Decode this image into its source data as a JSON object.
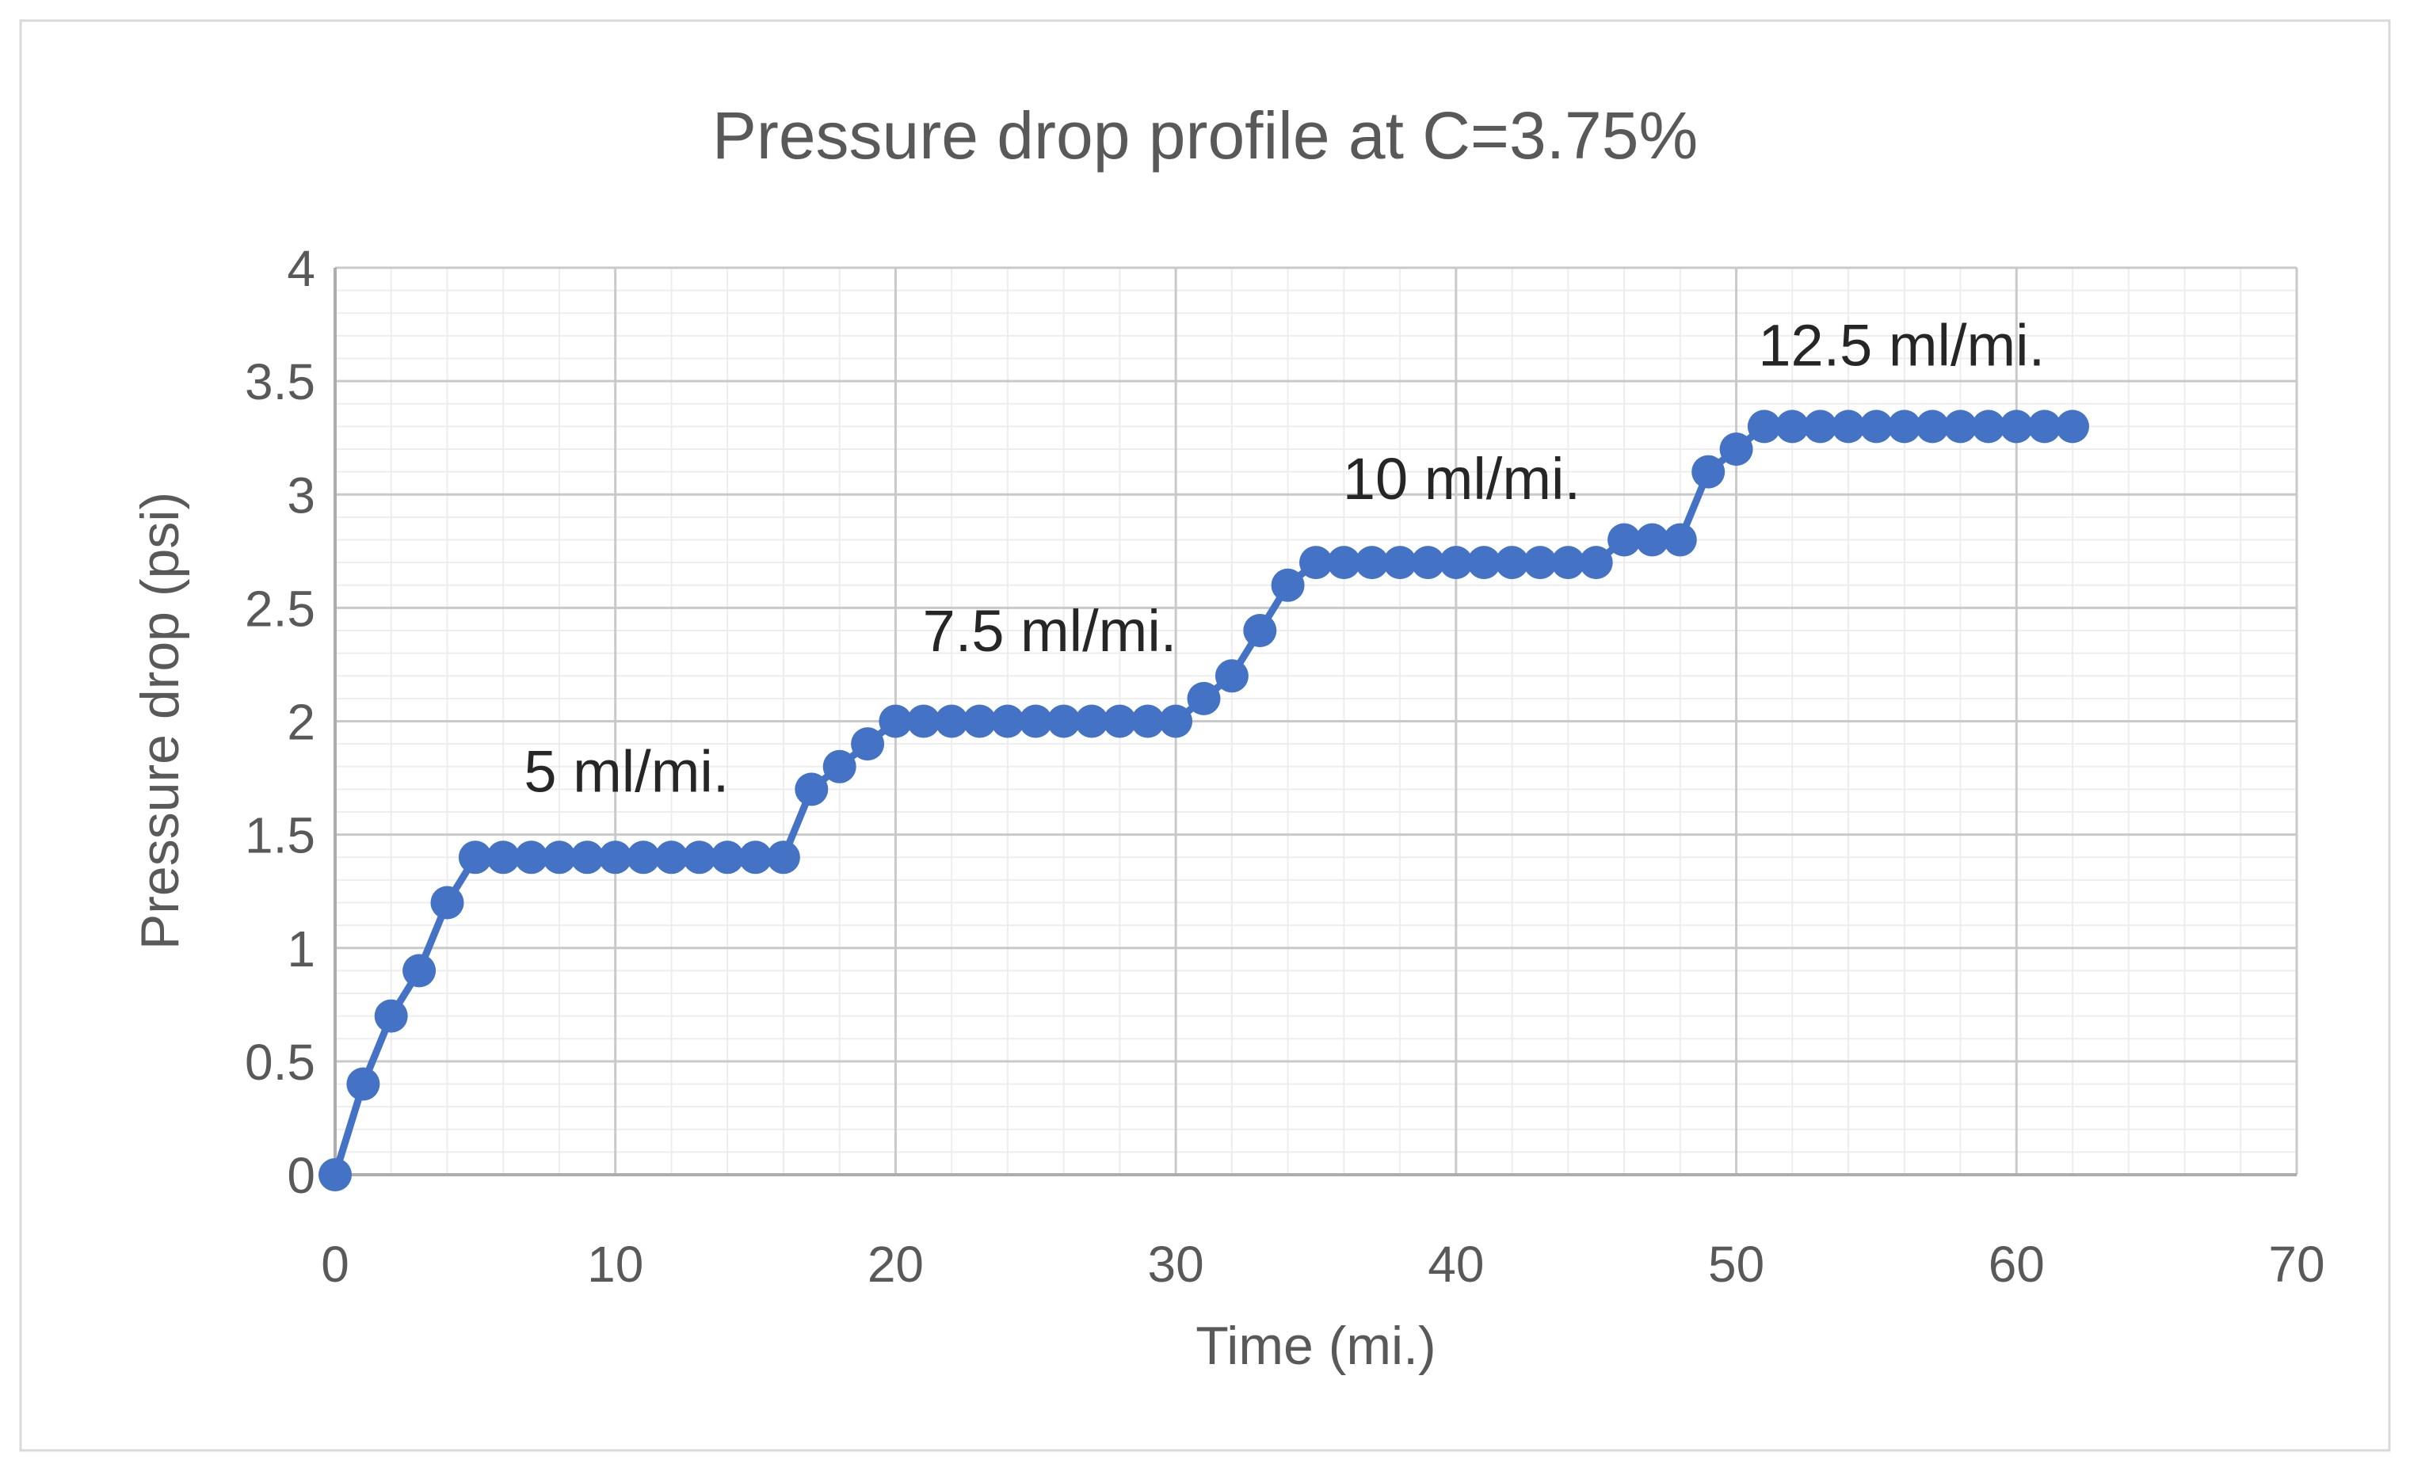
{
  "window": {
    "background": "#ffffff",
    "border_color": "#d9d9d9"
  },
  "colors": {
    "series": "#4472C4",
    "grid_minor": "#ededed",
    "grid_major": "#c9c9c9",
    "axis_line": "#adadad",
    "tick_text": "#595959",
    "title_text": "#595959",
    "annotation_text": "#262626"
  },
  "chart_data": {
    "type": "line",
    "title": "Pressure drop profile at C=3.75%",
    "xlabel": "Time (mi.)",
    "ylabel": "Pressure drop (psi)",
    "xlim": [
      0,
      70
    ],
    "ylim": [
      0,
      4
    ],
    "x_ticks": [
      0,
      10,
      20,
      30,
      40,
      50,
      60,
      70
    ],
    "y_ticks": [
      0,
      0.5,
      1,
      1.5,
      2,
      2.5,
      3,
      3.5,
      4
    ],
    "x_minor_step": 2,
    "y_minor_step": 0.1,
    "grid": "major and minor, both axes",
    "legend": false,
    "series": [
      {
        "name": "Pressure drop",
        "color": "#4472C4",
        "marker": "circle",
        "x": [
          0,
          1,
          2,
          3,
          4,
          5,
          6,
          7,
          8,
          9,
          10,
          11,
          12,
          13,
          14,
          15,
          16,
          17,
          18,
          19,
          20,
          21,
          22,
          23,
          24,
          25,
          26,
          27,
          28,
          29,
          30,
          31,
          32,
          33,
          34,
          35,
          36,
          37,
          38,
          39,
          40,
          41,
          42,
          43,
          44,
          45,
          46,
          47,
          48,
          49,
          50,
          51,
          52,
          53,
          54,
          55,
          56,
          57,
          58,
          59,
          60,
          61,
          62
        ],
        "values": [
          0,
          0.4,
          0.7,
          0.9,
          1.2,
          1.4,
          1.4,
          1.4,
          1.4,
          1.4,
          1.4,
          1.4,
          1.4,
          1.4,
          1.4,
          1.4,
          1.4,
          1.7,
          1.8,
          1.9,
          2,
          2,
          2,
          2,
          2,
          2,
          2,
          2,
          2,
          2,
          2,
          2.1,
          2.2,
          2.4,
          2.6,
          2.7,
          2.7,
          2.7,
          2.7,
          2.7,
          2.7,
          2.7,
          2.7,
          2.7,
          2.7,
          2.7,
          2.8,
          2.8,
          2.8,
          3.1,
          3.2,
          3.3,
          3.3,
          3.3,
          3.3,
          3.3,
          3.3,
          3.3,
          3.3,
          3.3,
          3.3,
          3.3,
          3.3
        ]
      }
    ],
    "annotations": [
      {
        "label": "5 ml/mi.",
        "x": 10.4,
        "y": 1.78
      },
      {
        "label": "7.5 ml/mi.",
        "x": 25.5,
        "y": 2.4
      },
      {
        "label": "10 ml/mi.",
        "x": 40.2,
        "y": 3.07
      },
      {
        "label": "12.5 ml/mi.",
        "x": 55.9,
        "y": 3.66
      }
    ]
  }
}
